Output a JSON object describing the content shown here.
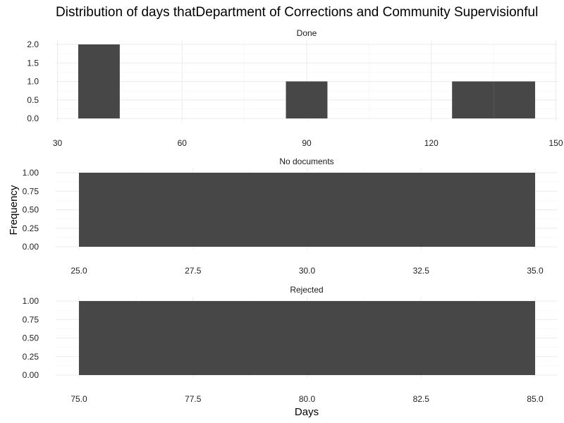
{
  "chart_data": {
    "type": "bar",
    "title": "Distribution of days thatDepartment of Corrections and Community Supervisionful",
    "xlabel": "Days",
    "ylabel": "Frequency",
    "bar_color": "#474747",
    "grid": true,
    "legend": "none",
    "facets": [
      {
        "name": "Done",
        "bins": [
          {
            "start": 35,
            "end": 45,
            "count": 2
          },
          {
            "start": 85,
            "end": 95,
            "count": 1
          },
          {
            "start": 125,
            "end": 135,
            "count": 1
          },
          {
            "start": 135,
            "end": 145,
            "count": 1
          }
        ],
        "xlim": [
          30,
          150
        ],
        "x_ticks": [
          30,
          60,
          90,
          120,
          150
        ],
        "x_tick_labels": [
          "30",
          "60",
          "90",
          "120",
          "150"
        ],
        "ylim": [
          0,
          2
        ],
        "y_ticks": [
          0,
          0.5,
          1,
          1.5,
          2
        ],
        "y_tick_labels": [
          "0.0",
          "0.5",
          "1.0",
          "1.5",
          "2.0"
        ]
      },
      {
        "name": "No documents",
        "bins": [
          {
            "start": 25,
            "end": 35,
            "count": 1
          }
        ],
        "xlim": [
          25,
          35
        ],
        "x_ticks": [
          25,
          27.5,
          30,
          32.5,
          35
        ],
        "x_tick_labels": [
          "25.0",
          "27.5",
          "30.0",
          "32.5",
          "35.0"
        ],
        "ylim": [
          0,
          1
        ],
        "y_ticks": [
          0,
          0.25,
          0.5,
          0.75,
          1
        ],
        "y_tick_labels": [
          "0.00",
          "0.25",
          "0.50",
          "0.75",
          "1.00"
        ]
      },
      {
        "name": "Rejected",
        "bins": [
          {
            "start": 75,
            "end": 85,
            "count": 1
          }
        ],
        "xlim": [
          75,
          85
        ],
        "x_ticks": [
          75,
          77.5,
          80,
          82.5,
          85
        ],
        "x_tick_labels": [
          "75.0",
          "77.5",
          "80.0",
          "82.5",
          "85.0"
        ],
        "ylim": [
          0,
          1
        ],
        "y_ticks": [
          0,
          0.25,
          0.5,
          0.75,
          1
        ],
        "y_tick_labels": [
          "0.00",
          "0.25",
          "0.50",
          "0.75",
          "1.00"
        ]
      }
    ]
  }
}
